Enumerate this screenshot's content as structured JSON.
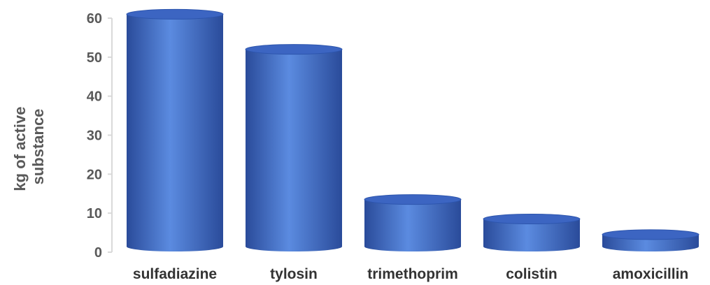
{
  "chart_data": {
    "type": "bar",
    "style": "cylinder",
    "ylabel_lines": [
      "kg of active",
      "substance"
    ],
    "categories": [
      "sulfadiazine",
      "tylosin",
      "trimethoprim",
      "colistin",
      "amoxicillin"
    ],
    "values": [
      61,
      52,
      13.5,
      8.5,
      4.5
    ],
    "ylim": [
      0,
      60
    ],
    "yticks": [
      0,
      10,
      20,
      30,
      40,
      50,
      60
    ],
    "grid": false,
    "colors": {
      "bar": "#4472c4",
      "axis": "#d9d9d9"
    }
  }
}
